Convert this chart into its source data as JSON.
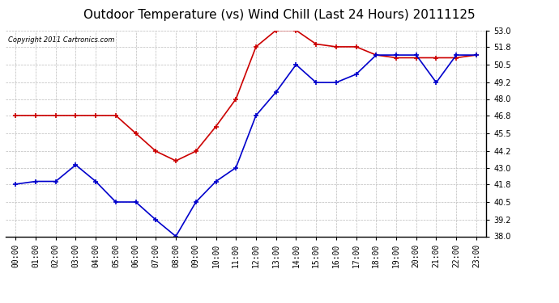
{
  "title": "Outdoor Temperature (vs) Wind Chill (Last 24 Hours) 20111125",
  "copyright": "Copyright 2011 Cartronics.com",
  "hours": [
    "00:00",
    "01:00",
    "02:00",
    "03:00",
    "04:00",
    "05:00",
    "06:00",
    "07:00",
    "08:00",
    "09:00",
    "10:00",
    "11:00",
    "12:00",
    "13:00",
    "14:00",
    "15:00",
    "16:00",
    "17:00",
    "18:00",
    "19:00",
    "20:00",
    "21:00",
    "22:00",
    "23:00"
  ],
  "temp": [
    41.8,
    42.0,
    42.0,
    43.2,
    42.0,
    40.5,
    40.5,
    39.2,
    38.0,
    40.5,
    42.0,
    43.0,
    46.8,
    48.5,
    50.5,
    49.2,
    49.2,
    49.8,
    51.2,
    51.2,
    51.2,
    49.2,
    51.2,
    51.2
  ],
  "wind_chill": [
    46.8,
    46.8,
    46.8,
    46.8,
    46.8,
    46.8,
    45.5,
    44.2,
    43.5,
    44.2,
    46.0,
    48.0,
    51.8,
    53.0,
    53.0,
    52.0,
    51.8,
    51.8,
    51.2,
    51.0,
    51.0,
    51.0,
    51.0,
    51.2
  ],
  "temp_color": "#0000cc",
  "wind_chill_color": "#cc0000",
  "bg_color": "#ffffff",
  "grid_color": "#bbbbbb",
  "ylim": [
    38.0,
    53.0
  ],
  "yticks": [
    38.0,
    39.2,
    40.5,
    41.8,
    43.0,
    44.2,
    45.5,
    46.8,
    48.0,
    49.2,
    50.5,
    51.8,
    53.0
  ],
  "title_fontsize": 11,
  "copyright_fontsize": 6,
  "tick_fontsize": 7,
  "ytick_fontsize": 7
}
